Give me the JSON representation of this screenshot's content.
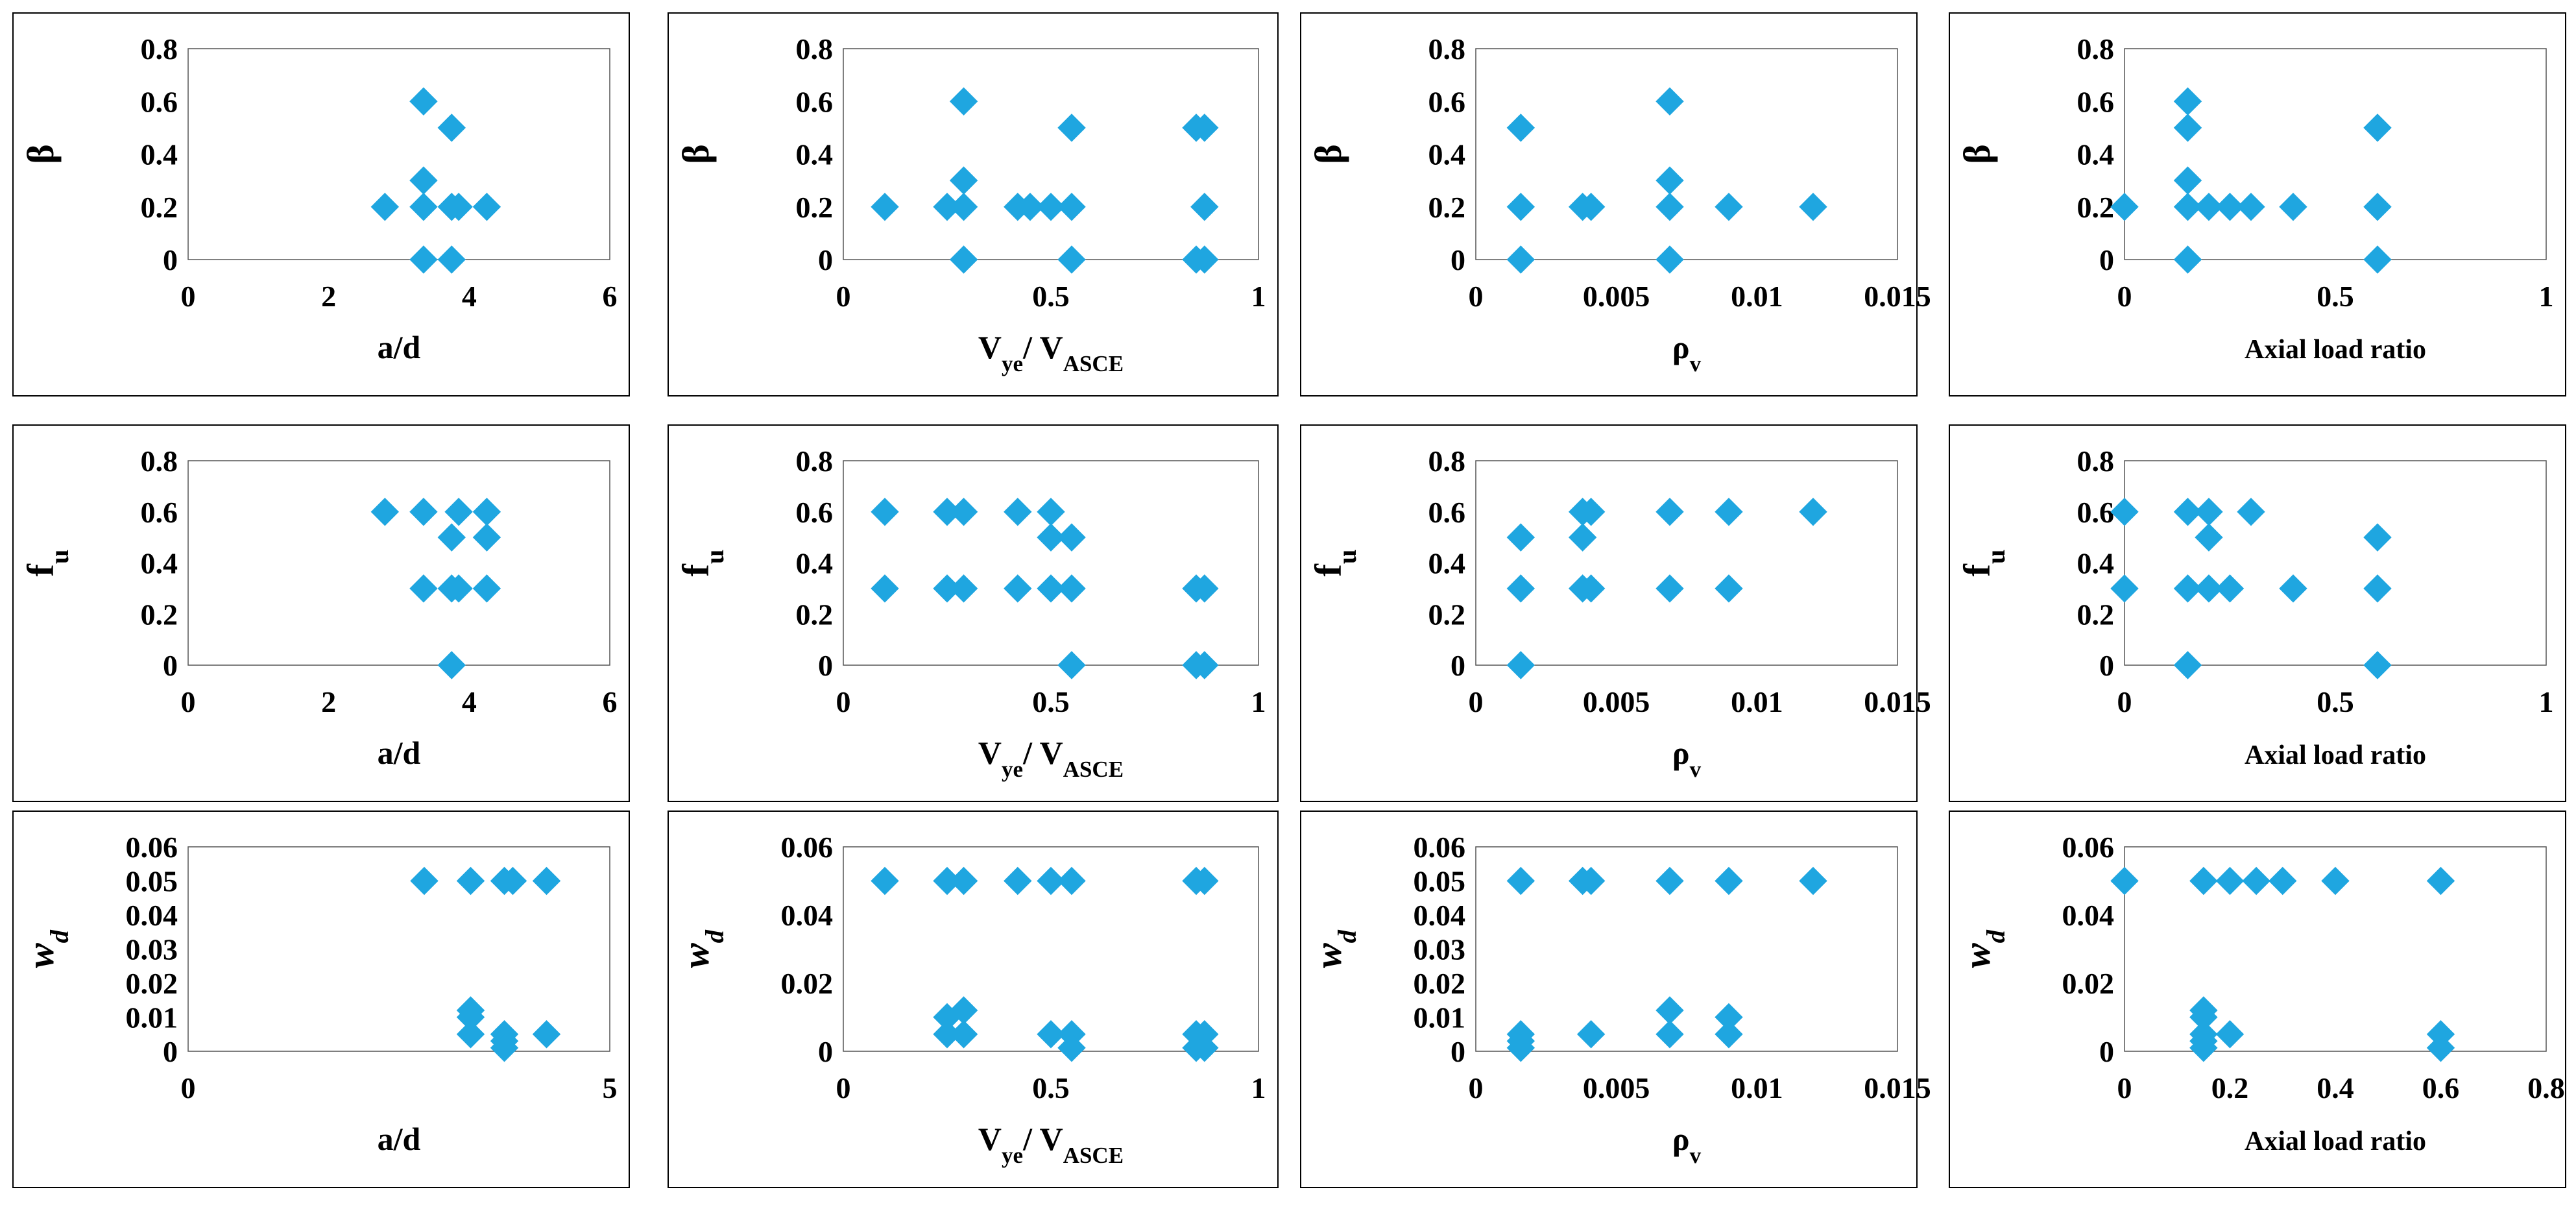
{
  "marker_color": "#1FA6E0",
  "chart_data": [
    {
      "id": "p11",
      "type": "scatter",
      "ylabel": "β",
      "xlabel": "a/d",
      "xlim": [
        0,
        6
      ],
      "ylim": [
        0,
        0.8
      ],
      "xticks": [
        0,
        2,
        4,
        6
      ],
      "xtick_labels": [
        "0",
        "2",
        "4",
        "6"
      ],
      "yticks": [
        0,
        0.2,
        0.4,
        0.6,
        0.8
      ],
      "ytick_labels": [
        "0",
        "0.2",
        "0.4",
        "0.6",
        "0.8"
      ],
      "points": [
        [
          2.8,
          0.2
        ],
        [
          3.35,
          0.6
        ],
        [
          3.35,
          0.3
        ],
        [
          3.35,
          0.2
        ],
        [
          3.35,
          0
        ],
        [
          3.75,
          0.5
        ],
        [
          3.75,
          0.2
        ],
        [
          3.75,
          0
        ],
        [
          3.85,
          0.2
        ],
        [
          4.25,
          0.2
        ]
      ]
    },
    {
      "id": "p12",
      "type": "scatter",
      "ylabel": "β",
      "xlabel": "Vye/ VASCE",
      "xlim": [
        0,
        1
      ],
      "ylim": [
        0,
        0.8
      ],
      "xticks": [
        0,
        0.5,
        1
      ],
      "xtick_labels": [
        "0",
        "0.5",
        "1"
      ],
      "yticks": [
        0,
        0.2,
        0.4,
        0.6,
        0.8
      ],
      "ytick_labels": [
        "0",
        "0.2",
        "0.4",
        "0.6",
        "0.8"
      ],
      "points": [
        [
          0.1,
          0.2
        ],
        [
          0.25,
          0.2
        ],
        [
          0.29,
          0.6
        ],
        [
          0.29,
          0.3
        ],
        [
          0.29,
          0.2
        ],
        [
          0.29,
          0
        ],
        [
          0.42,
          0.2
        ],
        [
          0.45,
          0.2
        ],
        [
          0.5,
          0.2
        ],
        [
          0.55,
          0.5
        ],
        [
          0.55,
          0.2
        ],
        [
          0.55,
          0
        ],
        [
          0.85,
          0.5
        ],
        [
          0.85,
          0
        ],
        [
          0.87,
          0.5
        ],
        [
          0.87,
          0.2
        ],
        [
          0.87,
          0
        ]
      ]
    },
    {
      "id": "p13",
      "type": "scatter",
      "ylabel": "β",
      "xlabel": "ρv",
      "xlim": [
        0,
        0.015
      ],
      "ylim": [
        0,
        0.8
      ],
      "xticks": [
        0,
        0.005,
        0.01,
        0.015
      ],
      "xtick_labels": [
        "0",
        "0.005",
        "0.01",
        "0.015"
      ],
      "yticks": [
        0,
        0.2,
        0.4,
        0.6,
        0.8
      ],
      "ytick_labels": [
        "0",
        "0.2",
        "0.4",
        "0.6",
        "0.8"
      ],
      "points": [
        [
          0.0016,
          0.5
        ],
        [
          0.0016,
          0.2
        ],
        [
          0.0016,
          0
        ],
        [
          0.0038,
          0.2
        ],
        [
          0.0041,
          0.2
        ],
        [
          0.0069,
          0.6
        ],
        [
          0.0069,
          0.3
        ],
        [
          0.0069,
          0.2
        ],
        [
          0.0069,
          0
        ],
        [
          0.009,
          0.2
        ],
        [
          0.012,
          0.2
        ]
      ]
    },
    {
      "id": "p14",
      "type": "scatter",
      "ylabel": "β",
      "xlabel": "Axial load ratio",
      "xlim": [
        0,
        1
      ],
      "ylim": [
        0,
        0.8
      ],
      "xticks": [
        0,
        0.5,
        1
      ],
      "xtick_labels": [
        "0",
        "0.5",
        "1"
      ],
      "yticks": [
        0,
        0.2,
        0.4,
        0.6,
        0.8
      ],
      "ytick_labels": [
        "0",
        "0.2",
        "0.4",
        "0.6",
        "0.8"
      ],
      "points": [
        [
          0,
          0.2
        ],
        [
          0.15,
          0.6
        ],
        [
          0.15,
          0.5
        ],
        [
          0.15,
          0.3
        ],
        [
          0.15,
          0.2
        ],
        [
          0.15,
          0
        ],
        [
          0.2,
          0.2
        ],
        [
          0.25,
          0.2
        ],
        [
          0.3,
          0.2
        ],
        [
          0.4,
          0.2
        ],
        [
          0.6,
          0.5
        ],
        [
          0.6,
          0.2
        ],
        [
          0.6,
          0
        ]
      ]
    },
    {
      "id": "p21",
      "type": "scatter",
      "ylabel": "fu",
      "xlabel": "a/d",
      "xlim": [
        0,
        6
      ],
      "ylim": [
        0,
        0.8
      ],
      "xticks": [
        0,
        2,
        4,
        6
      ],
      "xtick_labels": [
        "0",
        "2",
        "4",
        "6"
      ],
      "yticks": [
        0,
        0.2,
        0.4,
        0.6,
        0.8
      ],
      "ytick_labels": [
        "0",
        "0.2",
        "0.4",
        "0.6",
        "0.8"
      ],
      "points": [
        [
          2.8,
          0.6
        ],
        [
          3.35,
          0.6
        ],
        [
          3.35,
          0.3
        ],
        [
          3.75,
          0.5
        ],
        [
          3.75,
          0.3
        ],
        [
          3.75,
          0
        ],
        [
          3.85,
          0.6
        ],
        [
          3.85,
          0.3
        ],
        [
          4.25,
          0.6
        ],
        [
          4.25,
          0.5
        ],
        [
          4.25,
          0.3
        ]
      ]
    },
    {
      "id": "p22",
      "type": "scatter",
      "ylabel": "fu",
      "xlabel": "Vye/ VASCE",
      "xlim": [
        0,
        1
      ],
      "ylim": [
        0,
        0.8
      ],
      "xticks": [
        0,
        0.5,
        1
      ],
      "xtick_labels": [
        "0",
        "0.5",
        "1"
      ],
      "yticks": [
        0,
        0.2,
        0.4,
        0.6,
        0.8
      ],
      "ytick_labels": [
        "0",
        "0.2",
        "0.4",
        "0.6",
        "0.8"
      ],
      "points": [
        [
          0.1,
          0.6
        ],
        [
          0.1,
          0.3
        ],
        [
          0.25,
          0.6
        ],
        [
          0.25,
          0.3
        ],
        [
          0.29,
          0.6
        ],
        [
          0.29,
          0.3
        ],
        [
          0.42,
          0.6
        ],
        [
          0.42,
          0.3
        ],
        [
          0.5,
          0.6
        ],
        [
          0.5,
          0.5
        ],
        [
          0.5,
          0.3
        ],
        [
          0.55,
          0.5
        ],
        [
          0.55,
          0.3
        ],
        [
          0.55,
          0
        ],
        [
          0.85,
          0.3
        ],
        [
          0.85,
          0
        ],
        [
          0.87,
          0.3
        ],
        [
          0.87,
          0
        ]
      ]
    },
    {
      "id": "p23",
      "type": "scatter",
      "ylabel": "fu",
      "xlabel": "ρv",
      "xlim": [
        0,
        0.015
      ],
      "ylim": [
        0,
        0.8
      ],
      "xticks": [
        0,
        0.005,
        0.01,
        0.015
      ],
      "xtick_labels": [
        "0",
        "0.005",
        "0.01",
        "0.015"
      ],
      "yticks": [
        0,
        0.2,
        0.4,
        0.6,
        0.8
      ],
      "ytick_labels": [
        "0",
        "0.2",
        "0.4",
        "0.6",
        "0.8"
      ],
      "points": [
        [
          0.0016,
          0.5
        ],
        [
          0.0016,
          0.3
        ],
        [
          0.0016,
          0
        ],
        [
          0.0038,
          0.6
        ],
        [
          0.0038,
          0.5
        ],
        [
          0.0038,
          0.3
        ],
        [
          0.0041,
          0.6
        ],
        [
          0.0041,
          0.3
        ],
        [
          0.0069,
          0.6
        ],
        [
          0.0069,
          0.3
        ],
        [
          0.009,
          0.6
        ],
        [
          0.009,
          0.3
        ],
        [
          0.012,
          0.6
        ]
      ]
    },
    {
      "id": "p24",
      "type": "scatter",
      "ylabel": "fu",
      "xlabel": "Axial load ratio",
      "xlim": [
        0,
        1
      ],
      "ylim": [
        0,
        0.8
      ],
      "xticks": [
        0,
        0.5,
        1
      ],
      "xtick_labels": [
        "0",
        "0.5",
        "1"
      ],
      "yticks": [
        0,
        0.2,
        0.4,
        0.6,
        0.8
      ],
      "ytick_labels": [
        "0",
        "0.2",
        "0.4",
        "0.6",
        "0.8"
      ],
      "points": [
        [
          0,
          0.6
        ],
        [
          0,
          0.3
        ],
        [
          0.15,
          0.6
        ],
        [
          0.15,
          0.3
        ],
        [
          0.15,
          0
        ],
        [
          0.2,
          0.6
        ],
        [
          0.2,
          0.5
        ],
        [
          0.2,
          0.3
        ],
        [
          0.25,
          0.3
        ],
        [
          0.3,
          0.6
        ],
        [
          0.4,
          0.3
        ],
        [
          0.6,
          0.5
        ],
        [
          0.6,
          0.3
        ],
        [
          0.6,
          0
        ]
      ]
    },
    {
      "id": "p31",
      "type": "scatter",
      "ylabel": "wd",
      "xlabel": "a/d",
      "xlim": [
        0,
        5
      ],
      "ylim": [
        0,
        0.06
      ],
      "xticks": [
        0,
        5
      ],
      "xtick_labels": [
        "0",
        "5"
      ],
      "yticks": [
        0,
        0.01,
        0.02,
        0.03,
        0.04,
        0.05,
        0.06
      ],
      "ytick_labels": [
        "0",
        "0.01",
        "0.02",
        "0.03",
        "0.04",
        "0.05",
        "0.06"
      ],
      "points": [
        [
          2.8,
          0.05
        ],
        [
          3.35,
          0.05
        ],
        [
          3.35,
          0.012
        ],
        [
          3.35,
          0.01
        ],
        [
          3.35,
          0.005
        ],
        [
          3.75,
          0.05
        ],
        [
          3.75,
          0.005
        ],
        [
          3.75,
          0.003
        ],
        [
          3.75,
          0.001
        ],
        [
          3.85,
          0.05
        ],
        [
          4.25,
          0.05
        ],
        [
          4.25,
          0.005
        ]
      ]
    },
    {
      "id": "p32",
      "type": "scatter",
      "ylabel": "wd",
      "xlabel": "Vye/ VASCE",
      "xlim": [
        0,
        1
      ],
      "ylim": [
        0,
        0.06
      ],
      "xticks": [
        0,
        0.5,
        1
      ],
      "xtick_labels": [
        "0",
        "0.5",
        "1"
      ],
      "yticks": [
        0,
        0.02,
        0.04,
        0.06
      ],
      "ytick_labels": [
        "0",
        "0.02",
        "0.04",
        "0.06"
      ],
      "points": [
        [
          0.1,
          0.05
        ],
        [
          0.25,
          0.05
        ],
        [
          0.25,
          0.01
        ],
        [
          0.25,
          0.005
        ],
        [
          0.29,
          0.05
        ],
        [
          0.29,
          0.012
        ],
        [
          0.29,
          0.005
        ],
        [
          0.42,
          0.05
        ],
        [
          0.5,
          0.05
        ],
        [
          0.5,
          0.005
        ],
        [
          0.55,
          0.05
        ],
        [
          0.55,
          0.005
        ],
        [
          0.55,
          0.001
        ],
        [
          0.85,
          0.05
        ],
        [
          0.85,
          0.005
        ],
        [
          0.85,
          0.001
        ],
        [
          0.87,
          0.05
        ],
        [
          0.87,
          0.005
        ],
        [
          0.87,
          0.001
        ]
      ]
    },
    {
      "id": "p33",
      "type": "scatter",
      "ylabel": "wd",
      "xlabel": "ρv",
      "xlim": [
        0,
        0.015
      ],
      "ylim": [
        0,
        0.06
      ],
      "xticks": [
        0,
        0.005,
        0.01,
        0.015
      ],
      "xtick_labels": [
        "0",
        "0.005",
        "0.01",
        "0.015"
      ],
      "yticks": [
        0,
        0.01,
        0.02,
        0.03,
        0.04,
        0.05,
        0.06
      ],
      "ytick_labels": [
        "0",
        "0.01",
        "0.02",
        "0.03",
        "0.04",
        "0.05",
        "0.06"
      ],
      "points": [
        [
          0.0016,
          0.05
        ],
        [
          0.0016,
          0.005
        ],
        [
          0.0016,
          0.003
        ],
        [
          0.0016,
          0.001
        ],
        [
          0.0038,
          0.05
        ],
        [
          0.0041,
          0.05
        ],
        [
          0.0041,
          0.005
        ],
        [
          0.0069,
          0.05
        ],
        [
          0.0069,
          0.012
        ],
        [
          0.0069,
          0.005
        ],
        [
          0.009,
          0.05
        ],
        [
          0.009,
          0.01
        ],
        [
          0.009,
          0.005
        ],
        [
          0.012,
          0.05
        ]
      ]
    },
    {
      "id": "p34",
      "type": "scatter",
      "ylabel": "wd",
      "xlabel": "Axial load ratio",
      "xlim": [
        0,
        0.8
      ],
      "ylim": [
        0,
        0.06
      ],
      "xticks": [
        0,
        0.2,
        0.4,
        0.6,
        0.8
      ],
      "xtick_labels": [
        "0",
        "0.2",
        "0.4",
        "0.6",
        "0.8"
      ],
      "yticks": [
        0,
        0.02,
        0.04,
        0.06
      ],
      "ytick_labels": [
        "0",
        "0.02",
        "0.04",
        "0.06"
      ],
      "points": [
        [
          0,
          0.05
        ],
        [
          0.15,
          0.05
        ],
        [
          0.15,
          0.012
        ],
        [
          0.15,
          0.01
        ],
        [
          0.15,
          0.005
        ],
        [
          0.15,
          0.003
        ],
        [
          0.15,
          0.001
        ],
        [
          0.2,
          0.05
        ],
        [
          0.2,
          0.005
        ],
        [
          0.25,
          0.05
        ],
        [
          0.3,
          0.05
        ],
        [
          0.4,
          0.05
        ],
        [
          0.6,
          0.05
        ],
        [
          0.6,
          0.005
        ],
        [
          0.6,
          0.001
        ]
      ]
    }
  ]
}
